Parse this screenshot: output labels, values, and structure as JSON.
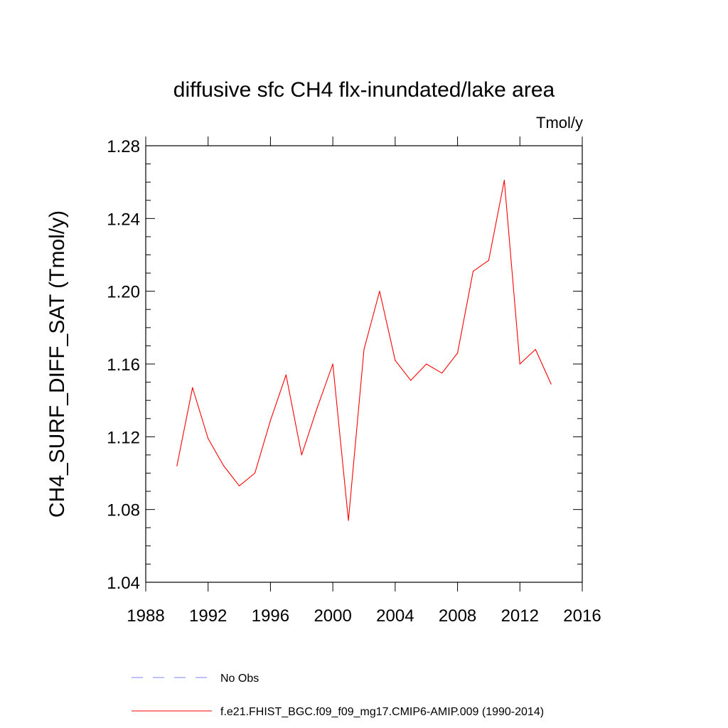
{
  "chart_data": {
    "type": "line",
    "title": "diffusive sfc CH4 flx-inundated/lake area",
    "units": "Tmol/y",
    "ylabel": "CH4_SURF_DIFF_SAT  (Tmol/y)",
    "xlabel": "",
    "xlim": [
      1988,
      2016
    ],
    "ylim": [
      1.04,
      1.28
    ],
    "xticks": [
      1988,
      1992,
      1996,
      2000,
      2004,
      2008,
      2012,
      2016
    ],
    "xtick_labels": [
      "1988",
      "1992",
      "1996",
      "2000",
      "2004",
      "2008",
      "2012",
      "2016"
    ],
    "yticks": [
      1.04,
      1.08,
      1.12,
      1.16,
      1.2,
      1.24,
      1.28
    ],
    "ytick_labels": [
      "1.04",
      "1.08",
      "1.12",
      "1.16",
      "1.20",
      "1.24",
      "1.28"
    ],
    "series": [
      {
        "name": "f.e21.FHIST_BGC.f09_f09_mg17.CMIP6-AMIP.009 (1990-2014)",
        "color": "#ff0000",
        "x": [
          1990,
          1991,
          1992,
          1993,
          1994,
          1995,
          1996,
          1997,
          1998,
          1999,
          2000,
          2001,
          2002,
          2003,
          2004,
          2005,
          2006,
          2007,
          2008,
          2009,
          2010,
          2011,
          2012,
          2013,
          2014
        ],
        "values": [
          1.104,
          1.147,
          1.119,
          1.104,
          1.093,
          1.1,
          1.129,
          1.154,
          1.11,
          1.136,
          1.16,
          1.074,
          1.168,
          1.2,
          1.162,
          1.151,
          1.16,
          1.155,
          1.166,
          1.211,
          1.217,
          1.261,
          1.16,
          1.168,
          1.149
        ]
      }
    ],
    "legend": [
      {
        "label": "No Obs",
        "style": "dashed",
        "color": "#8080ff"
      },
      {
        "label": "f.e21.FHIST_BGC.f09_f09_mg17.CMIP6-AMIP.009 (1990-2014)",
        "style": "solid",
        "color": "#ff0000"
      }
    ],
    "legend_position": "bottom"
  }
}
